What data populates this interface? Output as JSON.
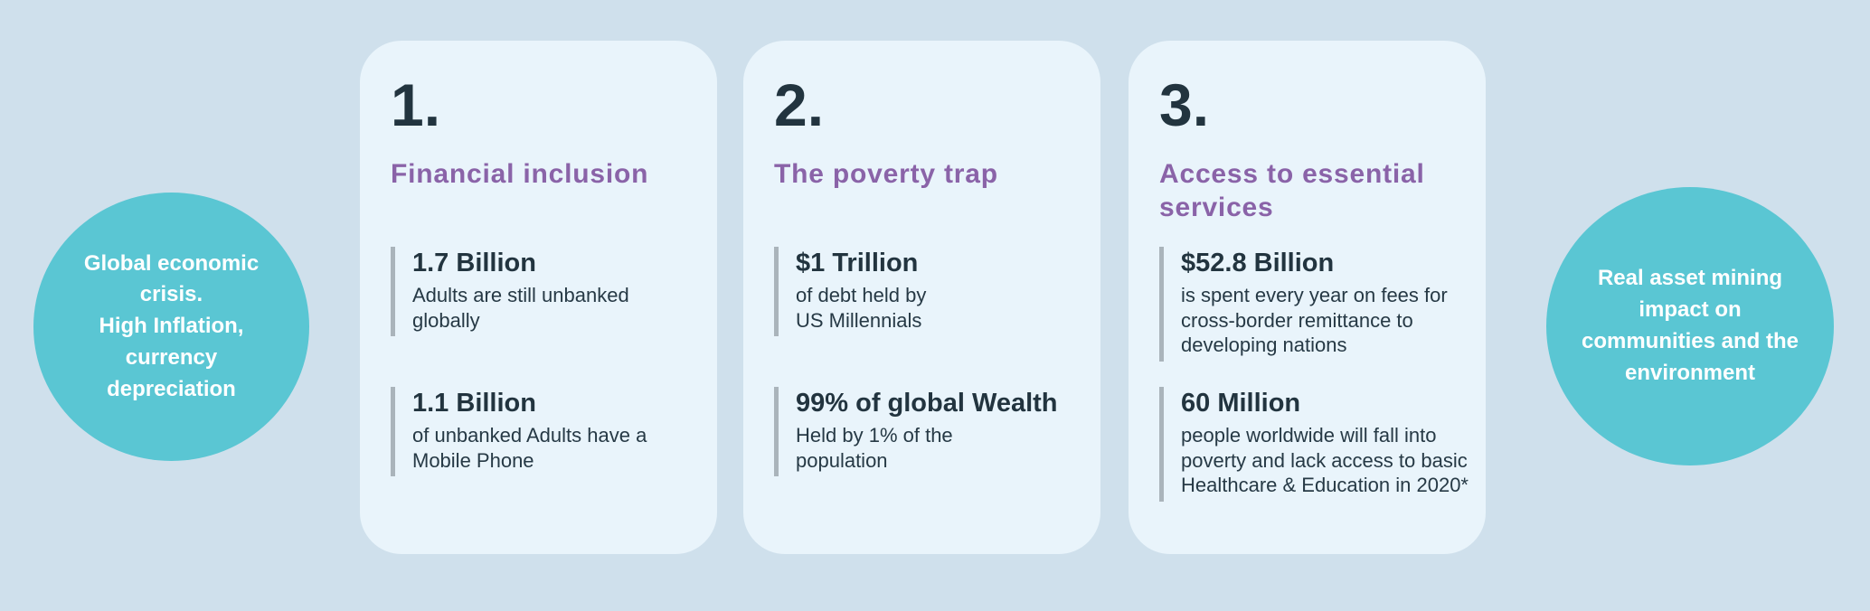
{
  "page": {
    "background_color": "#cfe0ec",
    "card_color": "#e9f4fb",
    "circle_color": "#5ac6d3",
    "accent_purple": "#8a63a8",
    "text_dark": "#22343f",
    "bar_gray": "#aab4bb"
  },
  "left_circle": {
    "text": "Global economic\ncrisis.\nHigh Inflation,\ncurrency\ndepreciation"
  },
  "right_circle": {
    "text": "Real asset  mining\nimpact on\ncommunities and the\nenvironment"
  },
  "cards": [
    {
      "number": "1.",
      "title": "Financial inclusion",
      "stats": [
        {
          "value": "1.7 Billion",
          "description": "Adults are still unbanked\nglobally"
        },
        {
          "value": "1.1 Billion",
          "description": "of unbanked Adults have a\nMobile Phone"
        }
      ]
    },
    {
      "number": "2.",
      "title": "The poverty trap",
      "stats": [
        {
          "value": "$1 Trillion",
          "description": "of debt held by\nUS Millennials"
        },
        {
          "value": "99% of global Wealth",
          "description": "Held by 1% of the\npopulation"
        }
      ]
    },
    {
      "number": "3.",
      "title": "Access to essential\nservices",
      "stats": [
        {
          "value": "$52.8 Billion",
          "description": "is spent every year on fees for\ncross-border remittance to\ndeveloping nations"
        },
        {
          "value": "60 Million",
          "description": "people worldwide will fall into\npoverty and lack access to basic\nHealthcare & Education in 2020*"
        }
      ]
    }
  ]
}
